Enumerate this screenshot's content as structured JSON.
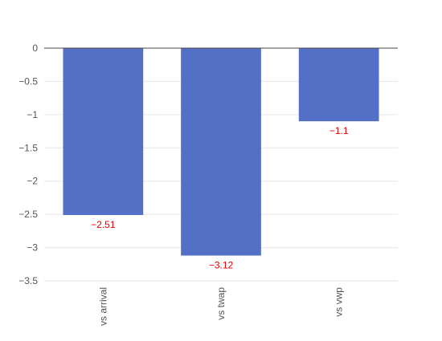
{
  "chart_data": {
    "type": "bar",
    "categories": [
      "vs arrival",
      "vs twap",
      "vs vwp"
    ],
    "values": [
      -2.51,
      -3.12,
      -1.1
    ],
    "value_labels": [
      "−2.51",
      "−3.12",
      "−1.1"
    ],
    "y_ticks": [
      0,
      -0.5,
      -1,
      -1.5,
      -2,
      -2.5,
      -3,
      -3.5
    ],
    "y_tick_labels": [
      "0",
      "−0.5",
      "−1",
      "−1.5",
      "−2",
      "−2.5",
      "−3",
      "−3.5"
    ],
    "ylim": [
      -3.5,
      0
    ],
    "grid": true,
    "title": "",
    "xlabel": "",
    "ylabel": "",
    "colors": {
      "bar": "#5470c6",
      "value_label": "#e00000",
      "grid": "#e6e6e6",
      "zero_line": "#444444",
      "tick_text": "#555555"
    }
  }
}
